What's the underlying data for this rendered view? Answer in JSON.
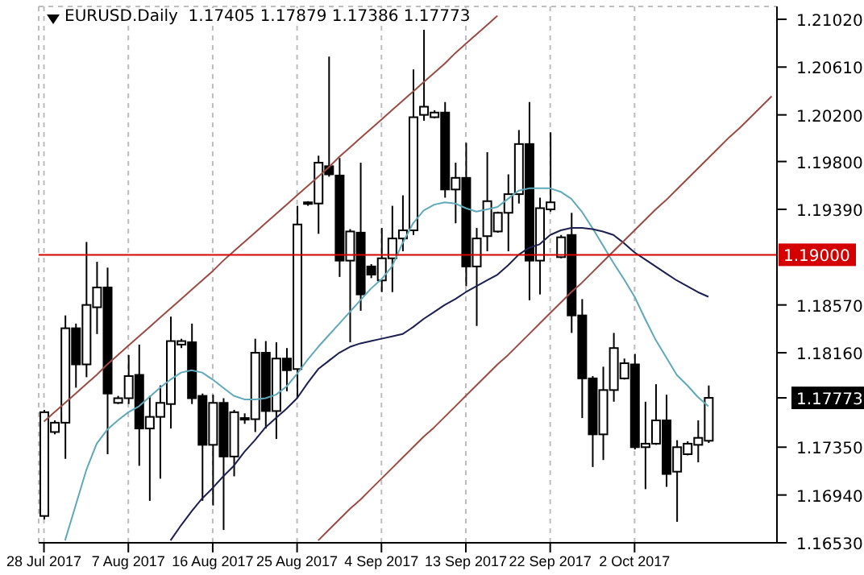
{
  "chart_data": {
    "type": "candlestick",
    "title": "EURUSD.Daily  1.17405 1.17879 1.17386 1.17773",
    "categories": [
      "28 Jul 2017",
      null,
      null,
      null,
      null,
      null,
      null,
      null,
      "7 Aug 2017",
      null,
      null,
      null,
      null,
      null,
      null,
      null,
      "16 Aug 2017",
      null,
      null,
      null,
      null,
      null,
      null,
      null,
      "25 Aug 2017",
      null,
      null,
      null,
      null,
      null,
      null,
      null,
      "4 Sep 2017",
      null,
      null,
      null,
      null,
      null,
      null,
      null,
      "13 Sep 2017",
      null,
      null,
      null,
      null,
      null,
      null,
      null,
      "22 Sep 2017",
      null,
      null,
      null,
      null,
      null,
      null,
      null,
      "2 Oct 2017",
      null,
      null,
      null,
      null,
      null,
      null,
      null,
      null,
      null,
      null,
      null,
      null,
      null
    ],
    "ohlc": [
      [
        1.1676,
        1.1767,
        1.1673,
        1.1765
      ],
      [
        1.1748,
        1.1758,
        1.1746,
        1.1756
      ],
      [
        1.1756,
        1.1848,
        1.1725,
        1.1837
      ],
      [
        1.1837,
        1.1841,
        1.1786,
        1.1806
      ],
      [
        1.1806,
        1.1911,
        1.1795,
        1.1857
      ],
      [
        1.1855,
        1.1894,
        1.1832,
        1.1872
      ],
      [
        1.1872,
        1.1889,
        1.1729,
        1.1781
      ],
      [
        1.1773,
        1.1779,
        1.1772,
        1.1777
      ],
      [
        1.1777,
        1.1814,
        1.1772,
        1.1796
      ],
      [
        1.1797,
        1.1823,
        1.1719,
        1.1751
      ],
      [
        1.1751,
        1.1779,
        1.1689,
        1.1761
      ],
      [
        1.1761,
        1.1788,
        1.1708,
        1.1773
      ],
      [
        1.1772,
        1.1847,
        1.1751,
        1.1826
      ],
      [
        1.1823,
        1.1828,
        1.182,
        1.1826
      ],
      [
        1.1825,
        1.1841,
        1.1772,
        1.1777
      ],
      [
        1.1779,
        1.1781,
        1.1689,
        1.1737
      ],
      [
        1.1737,
        1.178,
        1.1685,
        1.1773
      ],
      [
        1.1773,
        1.1777,
        1.1664,
        1.1727
      ],
      [
        1.1727,
        1.1767,
        1.171,
        1.1765
      ],
      [
        1.1759,
        1.1764,
        1.1755,
        1.176
      ],
      [
        1.1759,
        1.1828,
        1.1748,
        1.1816
      ],
      [
        1.1816,
        1.1826,
        1.1751,
        1.1766
      ],
      [
        1.1766,
        1.1825,
        1.1742,
        1.1811
      ],
      [
        1.1811,
        1.182,
        1.1783,
        1.1801
      ],
      [
        1.1802,
        1.1942,
        1.1777,
        1.1926
      ],
      [
        1.1944,
        1.1946,
        1.1942,
        1.1945
      ],
      [
        1.1944,
        1.1985,
        1.1918,
        1.1979
      ],
      [
        1.1976,
        1.207,
        1.1967,
        1.1969
      ],
      [
        1.1968,
        1.1983,
        1.1881,
        1.1895
      ],
      [
        1.1895,
        1.1922,
        1.1825,
        1.192
      ],
      [
        1.1919,
        1.1979,
        1.1852,
        1.1866
      ],
      [
        1.189,
        1.1892,
        1.188,
        1.1883
      ],
      [
        1.1878,
        1.1923,
        1.1868,
        1.1897
      ],
      [
        1.1897,
        1.1942,
        1.1868,
        1.1914
      ],
      [
        1.1914,
        1.1951,
        1.1903,
        1.1921
      ],
      [
        1.1921,
        1.2059,
        1.1917,
        1.2018
      ],
      [
        1.202,
        1.2093,
        1.2015,
        1.2027
      ],
      [
        1.2018,
        1.2024,
        1.2017,
        1.2022
      ],
      [
        1.2022,
        1.2031,
        1.1949,
        1.1956
      ],
      [
        1.1956,
        1.1979,
        1.1927,
        1.1966
      ],
      [
        1.1966,
        1.1996,
        1.1873,
        1.189
      ],
      [
        1.189,
        1.1923,
        1.1839,
        1.1914
      ],
      [
        1.1916,
        1.1988,
        1.1903,
        1.1946
      ],
      [
        1.192,
        1.1937,
        1.1919,
        1.1936
      ],
      [
        1.1936,
        1.1969,
        1.1903,
        1.1952
      ],
      [
        1.1952,
        1.2007,
        1.1944,
        1.1995
      ],
      [
        1.1995,
        1.2031,
        1.1861,
        1.1895
      ],
      [
        1.1895,
        1.1949,
        1.1866,
        1.194
      ],
      [
        1.1939,
        1.2005,
        1.1937,
        1.1945
      ],
      [
        1.1898,
        1.1917,
        1.1897,
        1.1915
      ],
      [
        1.1917,
        1.1936,
        1.1833,
        1.1848
      ],
      [
        1.1848,
        1.1862,
        1.176,
        1.1794
      ],
      [
        1.1794,
        1.1796,
        1.1718,
        1.1746
      ],
      [
        1.1746,
        1.1804,
        1.1724,
        1.1784
      ],
      [
        1.1784,
        1.1833,
        1.1774,
        1.182
      ],
      [
        1.1794,
        1.1811,
        1.1793,
        1.1807
      ],
      [
        1.1806,
        1.1815,
        1.1733,
        1.1735
      ],
      [
        1.1735,
        1.1774,
        1.1699,
        1.1738
      ],
      [
        1.1738,
        1.1789,
        1.1737,
        1.1758
      ],
      [
        1.1758,
        1.178,
        1.1701,
        1.1712
      ],
      [
        1.1714,
        1.1741,
        1.1671,
        1.1735
      ],
      [
        1.1729,
        1.174,
        1.1728,
        1.1738
      ],
      [
        1.1737,
        1.1758,
        1.1722,
        1.1743
      ],
      [
        1.17405,
        1.17879,
        1.17386,
        1.17773
      ],
      null,
      null,
      null,
      null,
      null,
      null
    ],
    "series": [
      {
        "type": "line",
        "color": "#5fa9b9",
        "values": [
          null,
          null,
          1.1655,
          1.1685,
          1.1715,
          1.1738,
          1.175,
          1.1758,
          1.1765,
          1.177,
          1.1778,
          1.1786,
          1.1793,
          1.1799,
          1.1801,
          1.1799,
          1.1793,
          1.1786,
          1.1779,
          1.1776,
          1.1776,
          1.1777,
          1.178,
          1.1787,
          1.1798,
          1.181,
          1.1821,
          1.1831,
          1.1841,
          1.1851,
          1.1861,
          1.1871,
          1.1879,
          1.189,
          1.191,
          1.1927,
          1.1938,
          1.1943,
          1.1945,
          1.1944,
          1.194,
          1.1937,
          1.1939,
          1.1941,
          1.1948,
          1.1955,
          1.1957,
          1.1957,
          1.1957,
          1.1954,
          1.1948,
          1.1937,
          1.1923,
          1.1908,
          1.1893,
          1.1879,
          1.1864,
          1.1845,
          1.1827,
          1.1812,
          1.1797,
          1.1788,
          1.1778,
          1.177,
          null,
          null,
          null,
          null,
          null,
          null
        ]
      },
      {
        "type": "line",
        "color": "#1c1f4f",
        "values": [
          null,
          null,
          null,
          null,
          null,
          null,
          null,
          null,
          null,
          null,
          null,
          null,
          1.1655,
          1.1668,
          1.168,
          1.1691,
          1.17,
          1.171,
          1.1719,
          1.1731,
          1.1741,
          1.1752,
          1.176,
          1.1768,
          1.1777,
          1.179,
          1.1802,
          1.1809,
          1.1816,
          1.1821,
          1.1824,
          1.1826,
          1.1828,
          1.183,
          1.1832,
          1.1838,
          1.1845,
          1.1851,
          1.1857,
          1.1862,
          1.1868,
          1.1873,
          1.1878,
          1.1883,
          1.1891,
          1.19,
          1.1906,
          1.1909,
          1.1917,
          1.1921,
          1.1923,
          1.1923,
          1.1922,
          1.192,
          1.1917,
          1.191,
          1.1902,
          1.1896,
          1.189,
          1.1884,
          1.1878,
          1.1873,
          1.1868,
          1.1864,
          null,
          null,
          null,
          null,
          null,
          null
        ]
      },
      {
        "type": "line",
        "color": "#9c4a44",
        "values": [
          1.1757,
          1.1765,
          1.1773,
          1.1781,
          1.1789,
          1.1797,
          1.1806,
          1.1814,
          1.1822,
          1.183,
          1.1838,
          1.1846,
          1.1854,
          1.1862,
          1.187,
          1.1878,
          1.1886,
          1.1895,
          1.1903,
          1.1911,
          1.1919,
          1.1927,
          1.1935,
          1.1943,
          1.1951,
          1.1959,
          1.1967,
          1.1975,
          1.1984,
          1.1992,
          1.2,
          1.2008,
          1.2016,
          1.2024,
          1.2032,
          1.204,
          1.2048,
          1.2056,
          1.2064,
          1.2073,
          1.2081,
          1.2089,
          1.2097,
          1.2105,
          null,
          null,
          null,
          null,
          null,
          null,
          null,
          null,
          null,
          null,
          null,
          null,
          null,
          null,
          null,
          null,
          null,
          null,
          null,
          null,
          null,
          null,
          null,
          null,
          null,
          null
        ]
      },
      {
        "type": "line",
        "color": "#9c4a44",
        "values": [
          null,
          null,
          null,
          null,
          null,
          null,
          null,
          null,
          null,
          null,
          null,
          null,
          null,
          null,
          null,
          null,
          null,
          null,
          null,
          null,
          null,
          null,
          null,
          null,
          null,
          null,
          1.1655,
          1.1664,
          1.1673,
          1.1682,
          1.169,
          1.1699,
          1.1708,
          1.1717,
          1.1726,
          1.1735,
          1.1744,
          1.1752,
          1.1761,
          1.177,
          1.1779,
          1.1788,
          1.1797,
          1.1806,
          1.1814,
          1.1823,
          1.1832,
          1.1841,
          1.185,
          1.1859,
          1.1868,
          1.1876,
          1.1885,
          1.1894,
          1.1903,
          1.1912,
          1.1921,
          1.193,
          1.1939,
          1.1947,
          1.1956,
          1.1965,
          1.1974,
          1.1983,
          1.1992,
          1.2001,
          1.2009,
          1.2018,
          1.2027,
          1.2036
        ]
      }
    ],
    "ylim": [
      1.1653,
      1.2113
    ],
    "yticks": [
      {
        "value": 1.1653,
        "label": "1.16530"
      },
      {
        "value": 1.1694,
        "label": "1.16940"
      },
      {
        "value": 1.1735,
        "label": "1.17350"
      },
      1.17773,
      {
        "value": 1.1816,
        "label": "1.18160"
      },
      {
        "value": 1.1857,
        "label": "1.18570"
      },
      {
        "value": 1.1939,
        "label": "1.19390"
      },
      {
        "value": 1.198,
        "label": "1.19800"
      },
      {
        "value": 1.202,
        "label": "1.20200"
      },
      {
        "value": 1.2061,
        "label": "1.20610"
      },
      {
        "value": 1.2102,
        "label": "1.21020"
      }
    ],
    "ref_lines": [
      {
        "axis": "y",
        "value": 1.19,
        "label": "1.19000",
        "color": "#d40000"
      }
    ],
    "grid": true
  }
}
